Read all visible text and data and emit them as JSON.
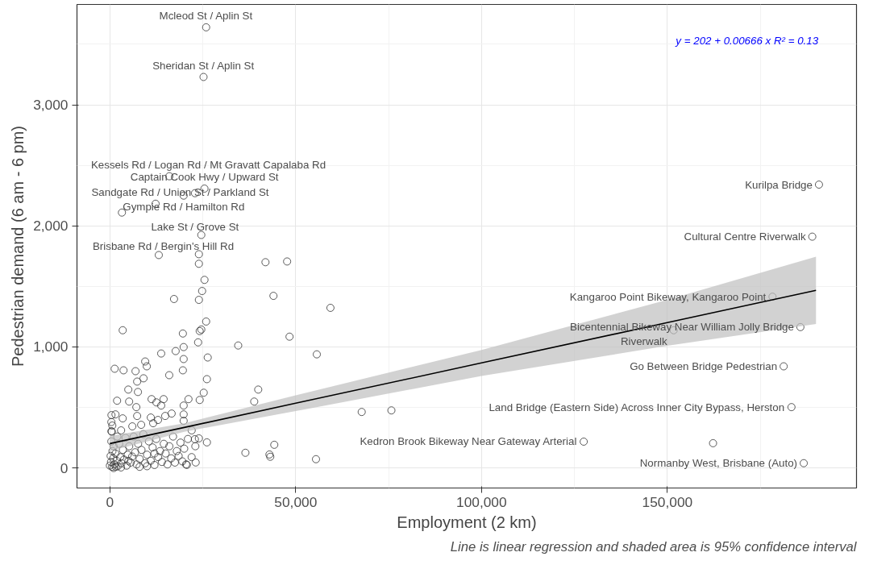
{
  "chart_data": {
    "type": "scatter",
    "xlabel": "Employment (2 km)",
    "ylabel": "Pedestrian demand (6 am - 6 pm)",
    "xlim": [
      -8850,
      200900
    ],
    "ylim": [
      -165,
      3829
    ],
    "xticks": [
      {
        "value": 0,
        "label": "0"
      },
      {
        "value": 50000,
        "label": "50,000"
      },
      {
        "value": 100000,
        "label": "100,000"
      },
      {
        "value": 150000,
        "label": "150,000"
      }
    ],
    "yticks": [
      {
        "value": 0,
        "label": "0"
      },
      {
        "value": 1000,
        "label": "1,000"
      },
      {
        "value": 2000,
        "label": "2,000"
      },
      {
        "value": 3000,
        "label": "3,000"
      }
    ],
    "grid": true,
    "marker": "circle",
    "series": [
      {
        "color": "#333333",
        "x": [
          25900,
          25200,
          16000,
          19850,
          22900,
          25450,
          12300,
          3240,
          190800,
          189000,
          178300,
          185800,
          151700,
          181300,
          183400,
          127500,
          186700,
          162300,
          3450,
          19640,
          24600,
          25900,
          24170,
          23740,
          19850,
          19850,
          26330,
          17700,
          13810,
          9500,
          9930,
          1290,
          3670,
          6900,
          15970,
          19640,
          9060,
          26110,
          7340,
          4960,
          7550,
          25250,
          1940,
          5180,
          11220,
          12520,
          14460,
          13810,
          7120,
          21150,
          19850,
          24170,
          430,
          1510,
          16620,
          19850,
          19850,
          7340,
          3450,
          11010,
          12950,
          14890,
          8420,
          6040,
          650,
          430,
          3020,
          11650,
          22010,
          26110,
          22870,
          23950,
          23090,
          20720,
          13160,
          23950,
          23950,
          25460,
          24820,
          17260,
          23950,
          24600,
          41870,
          47690,
          44020,
          59350,
          48340,
          34530,
          55680,
          39920,
          38840,
          67760,
          75750,
          36470,
          44240,
          42940,
          43160,
          55460,
          0,
          300,
          600,
          900,
          1200,
          1500,
          1800,
          2100,
          2500,
          2800,
          3100,
          3500,
          3800,
          4200,
          4500,
          4800,
          5200,
          5600,
          6000,
          6400,
          6800,
          7200,
          7600,
          8000,
          8500,
          9000,
          9500,
          10000,
          10500,
          11000,
          11500,
          12000,
          12500,
          13000,
          13500,
          14000,
          14500,
          15000,
          15500,
          16000,
          16500,
          17000,
          17500,
          18000,
          18500,
          19000,
          19500,
          20000,
          20500,
          21000,
          22000,
          23000,
          500,
          1000,
          2000,
          200,
          400,
          700,
          1600,
          3000,
          5000,
          8000,
          10000,
          12000,
          400,
          1000
        ],
        "values": [
          3640,
          3230,
          2410,
          2250,
          2270,
          2308,
          2183,
          2110,
          2341,
          1911,
          1415,
          1164,
          1138,
          840,
          503,
          218,
          40,
          205,
          1138,
          1111,
          1144,
          1210,
          1131,
          1038,
          999,
          900,
          913,
          966,
          946,
          880,
          840,
          820,
          807,
          800,
          767,
          807,
          741,
          734,
          714,
          648,
          628,
          622,
          556,
          549,
          569,
          542,
          569,
          516,
          503,
          569,
          516,
          562,
          437,
          443,
          450,
          443,
          390,
          430,
          410,
          417,
          397,
          430,
          357,
          344,
          351,
          304,
          311,
          370,
          311,
          212,
          238,
          245,
          46,
          26,
          1759,
          1766,
          1687,
          1554,
          1462,
          1396,
          1389,
          1925,
          1700,
          1706,
          1422,
          1323,
          1085,
          1012,
          939,
          648,
          549,
          463,
          476,
          126,
          192,
          112,
          93,
          73,
          20,
          50,
          10,
          80,
          30,
          120,
          60,
          15,
          200,
          90,
          40,
          150,
          70,
          250,
          20,
          110,
          180,
          45,
          95,
          260,
          130,
          30,
          200,
          75,
          150,
          280,
          40,
          110,
          220,
          60,
          170,
          25,
          240,
          90,
          140,
          50,
          200,
          120,
          30,
          180,
          80,
          260,
          45,
          140,
          100,
          210,
          55,
          160,
          30,
          240,
          90,
          180,
          300,
          180,
          260,
          100,
          220,
          140,
          10,
          5,
          60,
          10,
          15,
          120,
          380,
          0
        ]
      },
      {
        "type": "line",
        "color": "#000000",
        "marker": "none",
        "x": [
          0,
          20000,
          50000,
          100000,
          150000,
          190000
        ],
        "values": [
          202,
          335,
          535,
          868,
          1201,
          1467
        ],
        "lower": [
          140,
          300,
          470,
          760,
          1010,
          1190
        ],
        "upper": [
          265,
          370,
          600,
          975,
          1390,
          1745
        ]
      }
    ],
    "annotations": [
      {
        "text": "Mcleod St / Aplin St",
        "x": 25900,
        "y": 3640
      },
      {
        "text": "Sheridan St / Aplin St",
        "x": 25200,
        "y": 3230
      },
      {
        "text": "Kessels Rd / Logan Rd / Mt Gravatt Capalaba Rd",
        "x": 16000,
        "y": 2410
      },
      {
        "text": "Captain Cook Hwy / Upward St",
        "x": 25450,
        "y": 2308
      },
      {
        "text": "Gympie Rd / Hamilton Rd",
        "x": 19850,
        "y": 2250
      },
      {
        "text": "Lake St / Grove St",
        "x": 22900,
        "y": 2270
      },
      {
        "text": "Sandgate Rd / Union St / Parkland St",
        "x": 12300,
        "y": 2183
      },
      {
        "text": "Brisbane Rd / Bergin's Hill Rd",
        "x": 3240,
        "y": 2110
      },
      {
        "text": "Kurilpa Bridge",
        "x": 190800,
        "y": 2341
      },
      {
        "text": "Cultural Centre Riverwalk",
        "x": 189000,
        "y": 1911
      },
      {
        "text": "Kangaroo Point Bikeway, Kangaroo Point",
        "x": 178300,
        "y": 1415
      },
      {
        "text": "Bicentennial Bikeway Near William Jolly Bridge",
        "x": 185800,
        "y": 1164
      },
      {
        "text": "Riverwalk",
        "x": 151700,
        "y": 1138
      },
      {
        "text": "Go Between Bridge Pedestrian",
        "x": 181300,
        "y": 840
      },
      {
        "text": "Land Bridge (Eastern Side) Across Inner City Bypass, Herston",
        "x": 183400,
        "y": 503
      },
      {
        "text": "Kedron Brook Bikeway Near Gateway Arterial",
        "x": 127500,
        "y": 218
      },
      {
        "text": "Normanby West, Brisbane (Auto)",
        "x": 186700,
        "y": 40
      },
      "y = 202 + 0.00666 x   R² = 0.13",
      "Line is linear regression and shaded area is 95% confidence interval"
    ]
  }
}
